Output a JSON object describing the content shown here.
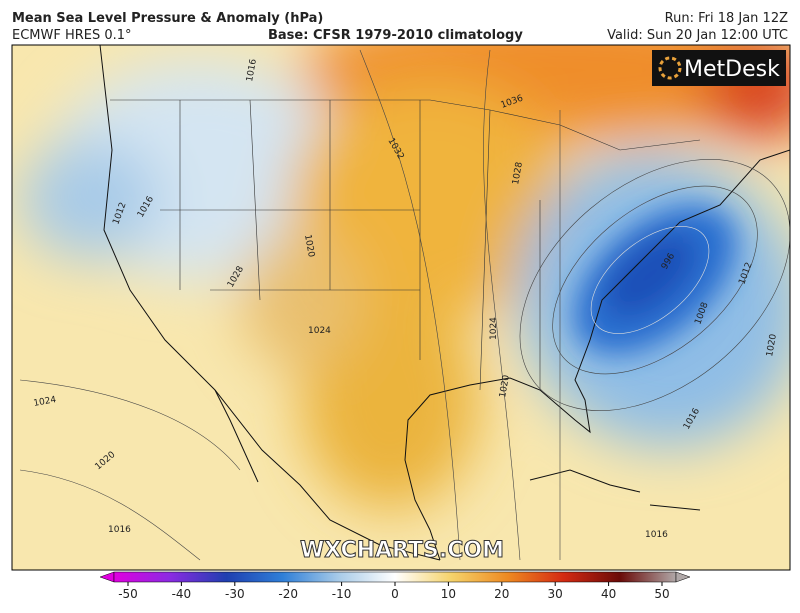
{
  "header": {
    "title": "Mean Sea Level Pressure & Anomaly (hPa)",
    "model": "ECMWF HRES 0.1°",
    "base": "Base: CFSR 1979-2010 climatology",
    "run": "Run: Fri 18 Jan 12Z",
    "valid": "Valid: Sun 20 Jan 12:00 UTC"
  },
  "logo": "MetDesk",
  "watermark": "WXCHARTS.COM",
  "isobar_labels": [
    "1016",
    "1012",
    "1016",
    "1020",
    "1028",
    "1024",
    "1032",
    "1036",
    "1028",
    "1024",
    "1024",
    "1020",
    "1016",
    "996",
    "1008",
    "1012",
    "1020",
    "1016",
    "1016",
    "1020"
  ],
  "colorbar": {
    "ticks": [
      -50,
      -40,
      -30,
      -20,
      -10,
      0,
      10,
      20,
      30,
      40,
      50
    ]
  }
}
